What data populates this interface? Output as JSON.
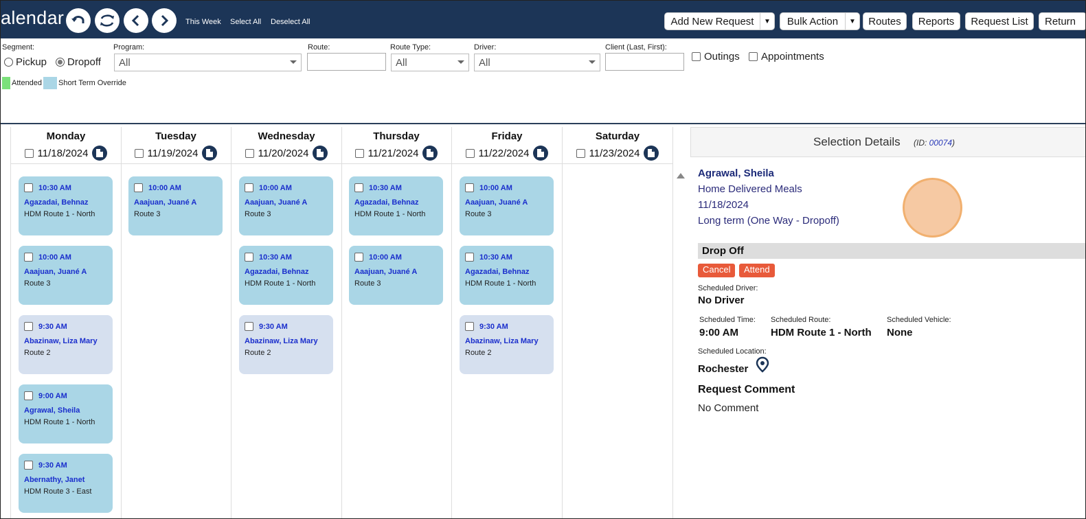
{
  "header": {
    "title": "alendar",
    "links": {
      "this_week": "This Week",
      "select_all": "Select All",
      "deselect_all": "Deselect All"
    },
    "buttons": {
      "add_new_request": "Add New Request",
      "bulk_action": "Bulk Action",
      "routes": "Routes",
      "reports": "Reports",
      "request_list": "Request List",
      "return": "Return"
    }
  },
  "filters": {
    "segment_label": "Segment:",
    "pickup": "Pickup",
    "dropoff": "Dropoff",
    "program_label": "Program:",
    "program_value": "All",
    "route_label": "Route:",
    "route_type_label": "Route Type:",
    "route_type_value": "All",
    "driver_label": "Driver:",
    "driver_value": "All",
    "client_label": "Client (Last, First):",
    "outings": "Outings",
    "appointments": "Appointments"
  },
  "legend": {
    "attended": "Attended",
    "attended_color": "#7be07b",
    "override": "Short Term Override",
    "override_color": "#aad6e6"
  },
  "days": [
    {
      "name": "Monday",
      "date": "11/18/2024",
      "items": [
        {
          "time": "10:30 AM",
          "name": "Agazadai, Behnaz",
          "route": "HDM Route 1 - North",
          "alt": false
        },
        {
          "time": "10:00 AM",
          "name": "Aaajuan, Juané A",
          "route": "Route 3",
          "alt": false
        },
        {
          "time": "9:30 AM",
          "name": "Abazinaw, Liza Mary",
          "route": "Route 2",
          "alt": true
        },
        {
          "time": "9:00 AM",
          "name": "Agrawal, Sheila",
          "route": "HDM Route 1 - North",
          "alt": false
        },
        {
          "time": "9:30 AM",
          "name": "Abernathy, Janet",
          "route": "HDM Route 3 - East",
          "alt": false
        }
      ]
    },
    {
      "name": "Tuesday",
      "date": "11/19/2024",
      "items": [
        {
          "time": "10:00 AM",
          "name": "Aaajuan, Juané A",
          "route": "Route 3",
          "alt": false
        }
      ]
    },
    {
      "name": "Wednesday",
      "date": "11/20/2024",
      "items": [
        {
          "time": "10:00 AM",
          "name": "Aaajuan, Juané A",
          "route": "Route 3",
          "alt": false
        },
        {
          "time": "10:30 AM",
          "name": "Agazadai, Behnaz",
          "route": "HDM Route 1 - North",
          "alt": false
        },
        {
          "time": "9:30 AM",
          "name": "Abazinaw, Liza Mary",
          "route": "Route 2",
          "alt": true
        }
      ]
    },
    {
      "name": "Thursday",
      "date": "11/21/2024",
      "items": [
        {
          "time": "10:30 AM",
          "name": "Agazadai, Behnaz",
          "route": "HDM Route 1 - North",
          "alt": false
        },
        {
          "time": "10:00 AM",
          "name": "Aaajuan, Juané A",
          "route": "Route 3",
          "alt": false
        }
      ]
    },
    {
      "name": "Friday",
      "date": "11/22/2024",
      "items": [
        {
          "time": "10:00 AM",
          "name": "Aaajuan, Juané A",
          "route": "Route 3",
          "alt": false
        },
        {
          "time": "10:30 AM",
          "name": "Agazadai, Behnaz",
          "route": "HDM Route 1 - North",
          "alt": false
        },
        {
          "time": "9:30 AM",
          "name": "Abazinaw, Liza Mary",
          "route": "Route 2",
          "alt": true
        }
      ]
    },
    {
      "name": "Saturday",
      "date": "11/23/2024",
      "items": []
    }
  ],
  "details": {
    "title": "Selection Details",
    "id_prefix": "(ID: ",
    "id_value": "00074",
    "id_suffix": ")",
    "client": "Agrawal, Sheila",
    "program": "Home Delivered Meals",
    "date": "11/18/2024",
    "type": "Long term (One Way - Dropoff)",
    "section": "Drop Off",
    "cancel": "Cancel",
    "attend": "Attend",
    "driver_label": "Scheduled Driver:",
    "driver_value": "No Driver",
    "time_label": "Scheduled Time:",
    "time_value": "9:00 AM",
    "route_label": "Scheduled Route:",
    "route_value": "HDM Route 1 - North",
    "vehicle_label": "Scheduled Vehicle:",
    "vehicle_value": "None",
    "location_label": "Scheduled Location:",
    "location_value": "Rochester",
    "comment_heading": "Request Comment",
    "comment_value": "No Comment"
  }
}
